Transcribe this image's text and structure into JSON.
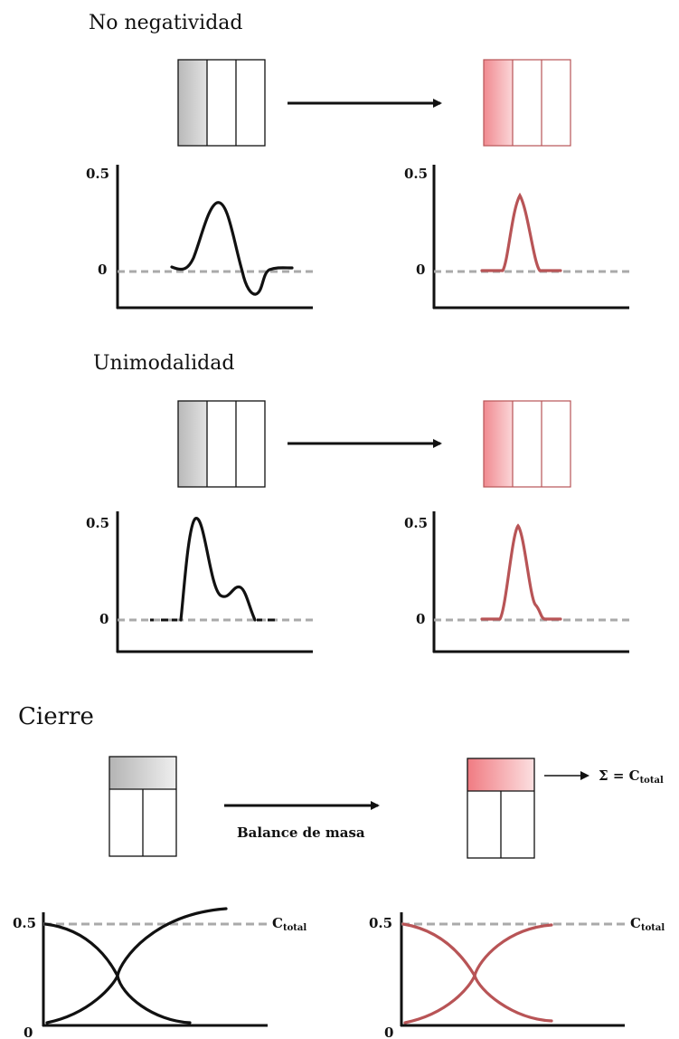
{
  "sections": {
    "no_negatividad": {
      "title": "No negatividad",
      "tick_top": "0.5",
      "tick_zero": "0"
    },
    "unimodalidad": {
      "title": "Unimodalidad",
      "tick_top": "0.5",
      "tick_zero": "0"
    },
    "cierre": {
      "title": "Cierre",
      "arrow_label": "Balance de masa",
      "sum_prefix": "Σ = C",
      "sum_subscript": "total",
      "curve_prefix": "C",
      "curve_subscript": "total",
      "tick_top": "0.5",
      "tick_zero": "0"
    }
  },
  "colors": {
    "original": "#111111",
    "constrained": "#b85456",
    "baseline": "#aaaaaa"
  }
}
